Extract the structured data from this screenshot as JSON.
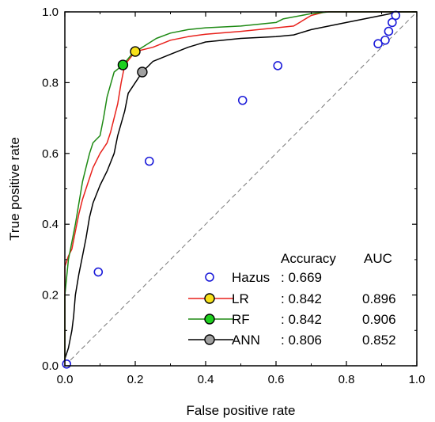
{
  "chart_data": {
    "type": "line",
    "xlabel": "False positive rate",
    "ylabel": "True positive rate",
    "xlim": [
      0.0,
      1.0
    ],
    "ylim": [
      0.0,
      1.0
    ],
    "x_ticks": [
      "0.0",
      "0.2",
      "0.4",
      "0.6",
      "0.8",
      "1.0"
    ],
    "y_ticks": [
      "0.0",
      "0.2",
      "0.4",
      "0.6",
      "0.8",
      "1.0"
    ],
    "grid": false,
    "diagonal_reference": true,
    "legend": {
      "position": "bottom-right",
      "header_accuracy": "Accuracy",
      "header_auc": "AUC",
      "entries": [
        {
          "name": "Hazus",
          "accuracy": ": 0.669",
          "auc": ""
        },
        {
          "name": "LR",
          "accuracy": ": 0.842",
          "auc": "0.896"
        },
        {
          "name": "RF",
          "accuracy": ": 0.842",
          "auc": "0.906"
        },
        {
          "name": "ANN",
          "accuracy": ": 0.806",
          "auc": "0.852"
        }
      ]
    },
    "series": [
      {
        "name": "LR",
        "kind": "curve",
        "color": "#e8211b",
        "marker_fill": "#f7e11a",
        "operating_point": [
          0.2,
          0.888
        ],
        "points": [
          [
            0,
            0
          ],
          [
            0,
            0.28
          ],
          [
            0.01,
            0.31
          ],
          [
            0.02,
            0.33
          ],
          [
            0.03,
            0.38
          ],
          [
            0.04,
            0.43
          ],
          [
            0.05,
            0.47
          ],
          [
            0.06,
            0.5
          ],
          [
            0.08,
            0.56
          ],
          [
            0.1,
            0.6
          ],
          [
            0.12,
            0.63
          ],
          [
            0.13,
            0.66
          ],
          [
            0.14,
            0.7
          ],
          [
            0.15,
            0.74
          ],
          [
            0.16,
            0.8
          ],
          [
            0.17,
            0.85
          ],
          [
            0.2,
            0.888
          ],
          [
            0.25,
            0.9
          ],
          [
            0.3,
            0.92
          ],
          [
            0.35,
            0.93
          ],
          [
            0.4,
            0.937
          ],
          [
            0.5,
            0.945
          ],
          [
            0.6,
            0.955
          ],
          [
            0.65,
            0.96
          ],
          [
            0.7,
            0.99
          ],
          [
            0.74,
            1.0
          ],
          [
            0.9,
            1.0
          ],
          [
            1.0,
            1.0
          ]
        ]
      },
      {
        "name": "RF",
        "kind": "curve",
        "color": "#1e8a14",
        "marker_fill": "#1ed01e",
        "operating_point": [
          0.165,
          0.85
        ],
        "points": [
          [
            0,
            0
          ],
          [
            0,
            0.2
          ],
          [
            0.01,
            0.3
          ],
          [
            0.02,
            0.35
          ],
          [
            0.03,
            0.4
          ],
          [
            0.04,
            0.46
          ],
          [
            0.05,
            0.52
          ],
          [
            0.06,
            0.56
          ],
          [
            0.07,
            0.6
          ],
          [
            0.08,
            0.63
          ],
          [
            0.09,
            0.64
          ],
          [
            0.1,
            0.65
          ],
          [
            0.11,
            0.7
          ],
          [
            0.12,
            0.76
          ],
          [
            0.14,
            0.83
          ],
          [
            0.165,
            0.85
          ],
          [
            0.19,
            0.88
          ],
          [
            0.22,
            0.9
          ],
          [
            0.26,
            0.925
          ],
          [
            0.3,
            0.94
          ],
          [
            0.35,
            0.95
          ],
          [
            0.4,
            0.955
          ],
          [
            0.5,
            0.96
          ],
          [
            0.6,
            0.97
          ],
          [
            0.62,
            0.98
          ],
          [
            0.7,
            0.995
          ],
          [
            0.75,
            1.0
          ],
          [
            0.9,
            1.0
          ],
          [
            1.0,
            1.0
          ]
        ]
      },
      {
        "name": "ANN",
        "kind": "curve",
        "color": "#000000",
        "marker_fill": "#a0a0a0",
        "operating_point": [
          0.22,
          0.83
        ],
        "points": [
          [
            0,
            0
          ],
          [
            0,
            0.02
          ],
          [
            0.01,
            0.05
          ],
          [
            0.02,
            0.1
          ],
          [
            0.025,
            0.14
          ],
          [
            0.03,
            0.2
          ],
          [
            0.04,
            0.26
          ],
          [
            0.05,
            0.31
          ],
          [
            0.06,
            0.36
          ],
          [
            0.07,
            0.42
          ],
          [
            0.08,
            0.46
          ],
          [
            0.1,
            0.51
          ],
          [
            0.12,
            0.55
          ],
          [
            0.14,
            0.6
          ],
          [
            0.15,
            0.65
          ],
          [
            0.17,
            0.72
          ],
          [
            0.18,
            0.77
          ],
          [
            0.2,
            0.8
          ],
          [
            0.22,
            0.83
          ],
          [
            0.25,
            0.86
          ],
          [
            0.3,
            0.88
          ],
          [
            0.35,
            0.9
          ],
          [
            0.4,
            0.915
          ],
          [
            0.5,
            0.925
          ],
          [
            0.6,
            0.93
          ],
          [
            0.65,
            0.935
          ],
          [
            0.7,
            0.95
          ],
          [
            0.8,
            0.97
          ],
          [
            0.9,
            0.99
          ],
          [
            0.95,
            1.0
          ],
          [
            1.0,
            1.0
          ]
        ]
      },
      {
        "name": "Hazus",
        "kind": "points",
        "color": "#1b1bd9",
        "points": [
          [
            0.005,
            0.005
          ],
          [
            0.095,
            0.265
          ],
          [
            0.24,
            0.578
          ],
          [
            0.505,
            0.75
          ],
          [
            0.605,
            0.848
          ],
          [
            0.89,
            0.91
          ],
          [
            0.91,
            0.92
          ],
          [
            0.92,
            0.945
          ],
          [
            0.93,
            0.97
          ],
          [
            0.94,
            0.99
          ]
        ]
      }
    ]
  }
}
